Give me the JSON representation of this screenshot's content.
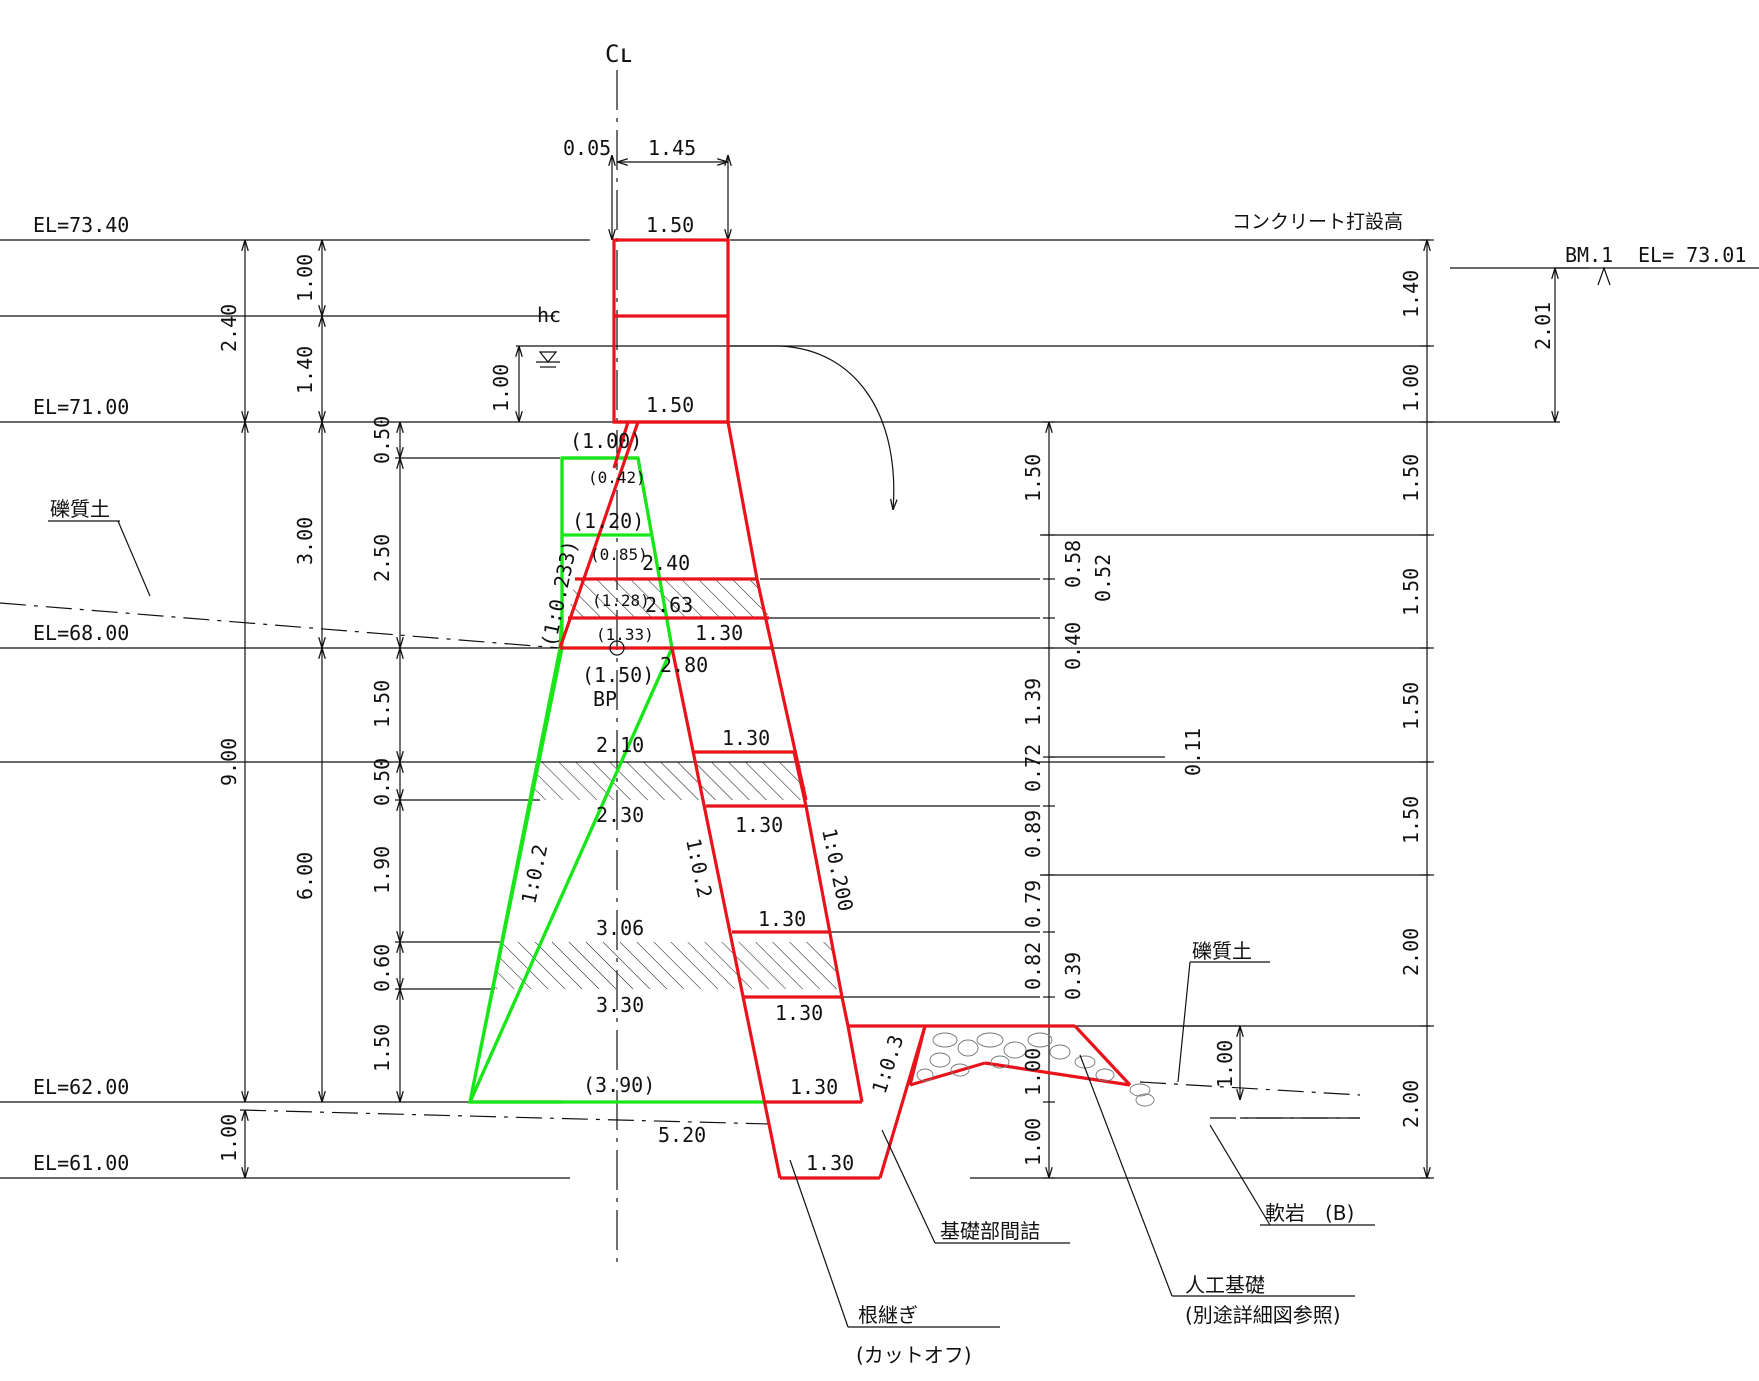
{
  "centerline": "Cʟ",
  "crest": {
    "offset": "0.05",
    "half_width": "1.45",
    "width_top": "1.50",
    "width_spill": "1.50",
    "hc": "hc"
  },
  "elevations": {
    "el_top": "EL=73.40",
    "el_spill": "EL=71.00",
    "el_68": "EL=68.00",
    "el_62": "EL=62.00",
    "el_61": "EL=61.00"
  },
  "benchmark": {
    "label": "BM.1",
    "value": "EL= 73.01",
    "height": "2.01"
  },
  "labels": {
    "concrete_pour": "コンクリート打設高",
    "gravel_soil_left": "礫質土",
    "gravel_soil_right": "礫質土",
    "soft_rock": "軟岩　(B)",
    "foundation_fill": "基礎部間詰",
    "artificial_foundation": "人工基礎",
    "artificial_foundation_note": "(別途詳細図参照)",
    "cutoff": "根継ぎ",
    "cutoff_note": "(カットオフ)",
    "bp": "BP"
  },
  "left_dims": {
    "d_240": "2.40",
    "d_900": "9.00",
    "d_100_base": "1.00",
    "d_100_top": "1.00",
    "d_140": "1.40",
    "d_300": "3.00",
    "d_600": "6.00",
    "d_050_a": "0.50",
    "d_250": "2.50",
    "d_150_a": "1.50",
    "d_050_b": "0.50",
    "d_190": "1.90",
    "d_060": "0.60",
    "d_150_b": "1.50",
    "d_overflow": "1.00"
  },
  "body_dims": {
    "w_100": "(1.00)",
    "w_042": "(0.42)",
    "w_120": "(1.20)",
    "w_085": "(0.85)",
    "w_240": "2.40",
    "w_128": "(1.28)",
    "w_263": "2.63",
    "w_133": "(1.33)",
    "w_130_a": "1.30",
    "w_150p": "(1.50)",
    "w_280": "2.80",
    "w_210": "2.10",
    "w_130_b": "1.30",
    "w_230": "2.30",
    "w_130_c": "1.30",
    "w_306": "3.06",
    "w_130_d": "1.30",
    "w_330": "3.30",
    "w_130_e": "1.30",
    "w_390": "(3.90)",
    "w_130_f": "1.30",
    "w_520": "5.20",
    "w_130_g": "1.30",
    "slope_upper_green": "(1:0.233)",
    "slope_green": "1:0.2",
    "slope_red_mid": "1:0.2",
    "slope_red_right": "1:0.200",
    "slope_apron": "1:0.3"
  },
  "mid_dims": {
    "m_150": "1.50",
    "m_058": "0.58",
    "m_052": "0.52",
    "m_040": "0.40",
    "m_139": "1.39",
    "m_011": "0.11",
    "m_072": "0.72",
    "m_089": "0.89",
    "m_079": "0.79",
    "m_082": "0.82",
    "m_039": "0.39",
    "m_100_a": "1.00",
    "m_100_b": "1.00",
    "m_100_c": "1.00"
  },
  "right_dims": {
    "r_140": "1.40",
    "r_100": "1.00",
    "r_150_a": "1.50",
    "r_150_b": "1.50",
    "r_150_c": "1.50",
    "r_150_d": "1.50",
    "r_200_a": "2.00",
    "r_200_b": "2.00"
  }
}
